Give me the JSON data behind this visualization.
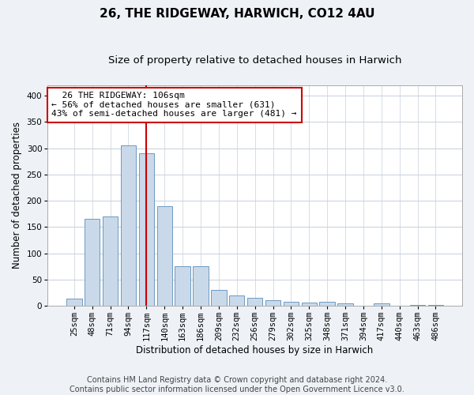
{
  "title": "26, THE RIDGEWAY, HARWICH, CO12 4AU",
  "subtitle": "Size of property relative to detached houses in Harwich",
  "xlabel": "Distribution of detached houses by size in Harwich",
  "ylabel": "Number of detached properties",
  "categories": [
    "25sqm",
    "48sqm",
    "71sqm",
    "94sqm",
    "117sqm",
    "140sqm",
    "163sqm",
    "186sqm",
    "209sqm",
    "232sqm",
    "256sqm",
    "279sqm",
    "302sqm",
    "325sqm",
    "348sqm",
    "371sqm",
    "394sqm",
    "417sqm",
    "440sqm",
    "463sqm",
    "486sqm"
  ],
  "values": [
    13,
    165,
    170,
    305,
    290,
    190,
    75,
    75,
    30,
    20,
    15,
    10,
    8,
    6,
    7,
    5,
    0,
    4,
    0,
    2,
    2
  ],
  "bar_color": "#c9d9ea",
  "bar_edgecolor": "#5b8db8",
  "vline_x": 4.0,
  "vline_color": "#cc0000",
  "annotation_text": "  26 THE RIDGEWAY: 106sqm\n← 56% of detached houses are smaller (631)\n43% of semi-detached houses are larger (481) →",
  "annotation_box_facecolor": "#ffffff",
  "annotation_box_edgecolor": "#cc0000",
  "title_fontsize": 11,
  "subtitle_fontsize": 9.5,
  "xlabel_fontsize": 8.5,
  "ylabel_fontsize": 8.5,
  "tick_fontsize": 7.5,
  "annotation_fontsize": 8,
  "footer_text": "Contains HM Land Registry data © Crown copyright and database right 2024.\nContains public sector information licensed under the Open Government Licence v3.0.",
  "footer_fontsize": 7,
  "background_color": "#eef2f7",
  "plot_background_color": "#ffffff",
  "grid_color": "#c8d0da",
  "ylim": [
    0,
    420
  ],
  "yticks": [
    0,
    50,
    100,
    150,
    200,
    250,
    300,
    350,
    400
  ]
}
